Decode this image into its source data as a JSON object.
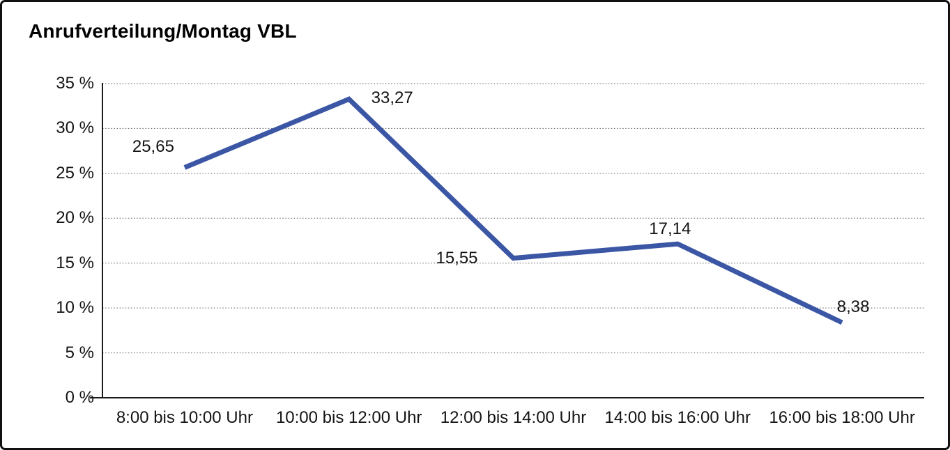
{
  "chart_data": {
    "type": "line",
    "title": "Anrufverteilung/Montag VBL",
    "categories": [
      "8:00 bis 10:00 Uhr",
      "10:00 bis 12:00 Uhr",
      "12:00 bis 14:00 Uhr",
      "14:00 bis 16:00 Uhr",
      "16:00 bis 18:00 Uhr"
    ],
    "values": [
      25.65,
      33.27,
      15.55,
      17.14,
      8.38
    ],
    "value_labels": [
      "25,65",
      "33,27",
      "15,55",
      "17,14",
      "8,38"
    ],
    "xlabel": "",
    "ylabel": "",
    "ylim": [
      0,
      35
    ],
    "y_tick_step": 5,
    "y_tick_labels": [
      "0 %",
      "5 %",
      "10 %",
      "15 %",
      "20 %",
      "25 %",
      "30 %",
      "35 %"
    ],
    "grid": "horizontal-dotted",
    "legend": "none",
    "line_color": "#3A56A4",
    "axis_color": "#1a1a1a",
    "gridline_color": "#5a5a5a"
  }
}
